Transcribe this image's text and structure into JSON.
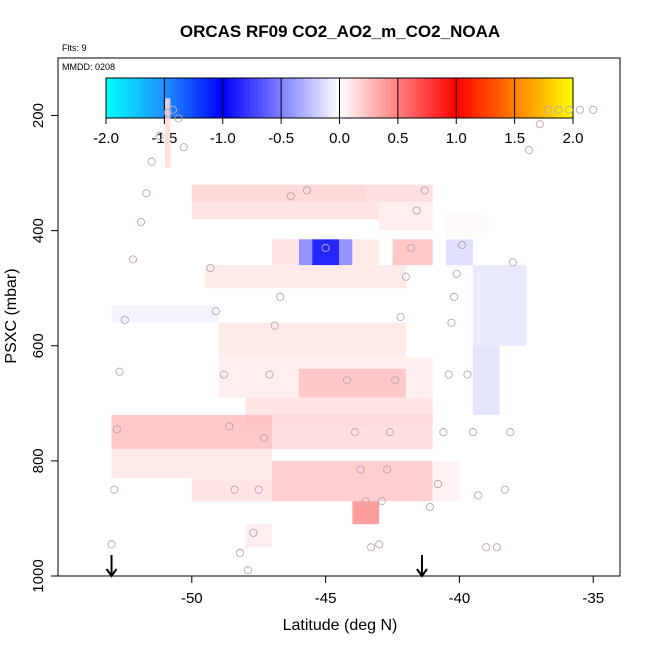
{
  "chart_data": {
    "type": "heatmap",
    "title": "ORCAS RF09 CO2_AO2_m_CO2_NOAA",
    "flights_label": "Flts: 9",
    "date_label": "MMDD: 0208",
    "xlabel": "Latitude (deg N)",
    "ylabel": "PSXC (mbar)",
    "xlim": [
      -55,
      -34
    ],
    "ylim": [
      1000,
      100
    ],
    "x_ticks": [
      -50,
      -45,
      -40,
      -35
    ],
    "x_tick_labels": [
      "-50",
      "-45",
      "-40",
      "-35"
    ],
    "y_ticks": [
      200,
      400,
      600,
      800,
      1000
    ],
    "y_tick_labels": [
      "200",
      "400",
      "600",
      "800",
      "1000"
    ],
    "colorbar": {
      "range": [
        -2.0,
        2.0
      ],
      "ticks": [
        -2.0,
        -1.5,
        -1.0,
        -0.5,
        0.0,
        0.5,
        1.0,
        1.5,
        2.0
      ],
      "tick_labels": [
        "-2.0",
        "-1.5",
        "-1.0",
        "-0.5",
        "0.0",
        "0.5",
        "1.0",
        "1.5",
        "2.0"
      ],
      "stops": [
        "#00ffff",
        "#1e90ff",
        "#0000ff",
        "#ffffff",
        "#ff0000",
        "#ff7f00",
        "#ffff00"
      ]
    },
    "cells": [
      {
        "x0": -51,
        "x1": -50.8,
        "p0": 170,
        "p1": 290,
        "v": 0.15
      },
      {
        "x0": -50,
        "x1": -43.5,
        "p0": 320,
        "p1": 350,
        "v": 0.18
      },
      {
        "x0": -43.5,
        "x1": -41,
        "p0": 320,
        "p1": 350,
        "v": 0.15
      },
      {
        "x0": -50,
        "x1": -43,
        "p0": 350,
        "p1": 380,
        "v": 0.12
      },
      {
        "x0": -43,
        "x1": -41,
        "p0": 350,
        "p1": 400,
        "v": 0.08
      },
      {
        "x0": -40.5,
        "x1": -39,
        "p0": 370,
        "p1": 410,
        "v": 0.02
      },
      {
        "x0": -46,
        "x1": -45.5,
        "p0": 415,
        "p1": 460,
        "v": -0.5
      },
      {
        "x0": -45.5,
        "x1": -44.5,
        "p0": 415,
        "p1": 460,
        "v": -1.0
      },
      {
        "x0": -44.5,
        "x1": -44,
        "p0": 415,
        "p1": 460,
        "v": -0.5
      },
      {
        "x0": -47,
        "x1": -46,
        "p0": 415,
        "p1": 460,
        "v": 0.12
      },
      {
        "x0": -44,
        "x1": -43,
        "p0": 415,
        "p1": 460,
        "v": 0.1
      },
      {
        "x0": -42.5,
        "x1": -41,
        "p0": 415,
        "p1": 460,
        "v": 0.25
      },
      {
        "x0": -40.5,
        "x1": -39.5,
        "p0": 415,
        "p1": 460,
        "v": -0.15
      },
      {
        "x0": -39.5,
        "x1": -37.5,
        "p0": 460,
        "p1": 600,
        "v": -0.1
      },
      {
        "x0": -39.5,
        "x1": -38.5,
        "p0": 600,
        "p1": 720,
        "v": -0.12
      },
      {
        "x0": -49.5,
        "x1": -42,
        "p0": 460,
        "p1": 500,
        "v": 0.1
      },
      {
        "x0": -53,
        "x1": -49,
        "p0": 530,
        "p1": 560,
        "v": -0.05
      },
      {
        "x0": -49,
        "x1": -42,
        "p0": 560,
        "p1": 620,
        "v": 0.1
      },
      {
        "x0": -49,
        "x1": -41,
        "p0": 620,
        "p1": 690,
        "v": 0.08
      },
      {
        "x0": -46,
        "x1": -42,
        "p0": 640,
        "p1": 690,
        "v": 0.25
      },
      {
        "x0": -48,
        "x1": -41,
        "p0": 690,
        "p1": 740,
        "v": 0.12
      },
      {
        "x0": -53,
        "x1": -47,
        "p0": 720,
        "p1": 780,
        "v": 0.25
      },
      {
        "x0": -47,
        "x1": -41,
        "p0": 720,
        "p1": 780,
        "v": 0.15
      },
      {
        "x0": -53,
        "x1": -47,
        "p0": 780,
        "p1": 830,
        "v": 0.1
      },
      {
        "x0": -47,
        "x1": -41,
        "p0": 800,
        "p1": 870,
        "v": 0.22
      },
      {
        "x0": -50,
        "x1": -47,
        "p0": 830,
        "p1": 870,
        "v": 0.12
      },
      {
        "x0": -44,
        "x1": -43,
        "p0": 870,
        "p1": 910,
        "v": 0.45
      },
      {
        "x0": -48,
        "x1": -47,
        "p0": 910,
        "p1": 950,
        "v": 0.08
      },
      {
        "x0": -41,
        "x1": -40,
        "p0": 800,
        "p1": 870,
        "v": 0.06
      }
    ],
    "points": [
      {
        "x": -53,
        "p": 945
      },
      {
        "x": -52.9,
        "p": 850
      },
      {
        "x": -52.8,
        "p": 745
      },
      {
        "x": -52.7,
        "p": 645
      },
      {
        "x": -52.5,
        "p": 555
      },
      {
        "x": -52.2,
        "p": 450
      },
      {
        "x": -51.9,
        "p": 385
      },
      {
        "x": -51.7,
        "p": 335
      },
      {
        "x": -51.5,
        "p": 280
      },
      {
        "x": -51.2,
        "p": 235
      },
      {
        "x": -50.9,
        "p": 195
      },
      {
        "x": -50.7,
        "p": 190
      },
      {
        "x": -50.5,
        "p": 205
      },
      {
        "x": -50.3,
        "p": 255
      },
      {
        "x": -49.3,
        "p": 465
      },
      {
        "x": -49.1,
        "p": 540
      },
      {
        "x": -48.8,
        "p": 650
      },
      {
        "x": -48.6,
        "p": 740
      },
      {
        "x": -48.4,
        "p": 850
      },
      {
        "x": -48.2,
        "p": 960
      },
      {
        "x": -47.9,
        "p": 990
      },
      {
        "x": -47.7,
        "p": 925
      },
      {
        "x": -47.5,
        "p": 850
      },
      {
        "x": -47.3,
        "p": 760
      },
      {
        "x": -47.1,
        "p": 650
      },
      {
        "x": -46.9,
        "p": 565
      },
      {
        "x": -46.7,
        "p": 515
      },
      {
        "x": -46.3,
        "p": 340
      },
      {
        "x": -45.7,
        "p": 330
      },
      {
        "x": -45,
        "p": 430
      },
      {
        "x": -44.2,
        "p": 660
      },
      {
        "x": -43.9,
        "p": 750
      },
      {
        "x": -43.7,
        "p": 815
      },
      {
        "x": -43.5,
        "p": 870
      },
      {
        "x": -43.3,
        "p": 950
      },
      {
        "x": -43,
        "p": 945
      },
      {
        "x": -42.9,
        "p": 870
      },
      {
        "x": -42.7,
        "p": 815
      },
      {
        "x": -42.6,
        "p": 750
      },
      {
        "x": -42.4,
        "p": 660
      },
      {
        "x": -42.2,
        "p": 550
      },
      {
        "x": -42,
        "p": 480
      },
      {
        "x": -41.8,
        "p": 430
      },
      {
        "x": -41.6,
        "p": 365
      },
      {
        "x": -41.3,
        "p": 330
      },
      {
        "x": -41.1,
        "p": 880
      },
      {
        "x": -40.8,
        "p": 840
      },
      {
        "x": -40.6,
        "p": 750
      },
      {
        "x": -40.4,
        "p": 650
      },
      {
        "x": -40.3,
        "p": 560
      },
      {
        "x": -40.2,
        "p": 515
      },
      {
        "x": -40.1,
        "p": 475
      },
      {
        "x": -39.9,
        "p": 425
      },
      {
        "x": -39.7,
        "p": 650
      },
      {
        "x": -39.5,
        "p": 750
      },
      {
        "x": -39.3,
        "p": 860
      },
      {
        "x": -39,
        "p": 950
      },
      {
        "x": -38.6,
        "p": 950
      },
      {
        "x": -38.3,
        "p": 850
      },
      {
        "x": -38.1,
        "p": 750
      },
      {
        "x": -38,
        "p": 455
      },
      {
        "x": -37.4,
        "p": 260
      },
      {
        "x": -37,
        "p": 215
      },
      {
        "x": -36.7,
        "p": 190
      },
      {
        "x": -36.3,
        "p": 190
      },
      {
        "x": -35.9,
        "p": 190
      },
      {
        "x": -35.5,
        "p": 190
      },
      {
        "x": -35,
        "p": 190
      }
    ],
    "arrows_at_x": [
      -53,
      -41.4
    ]
  }
}
